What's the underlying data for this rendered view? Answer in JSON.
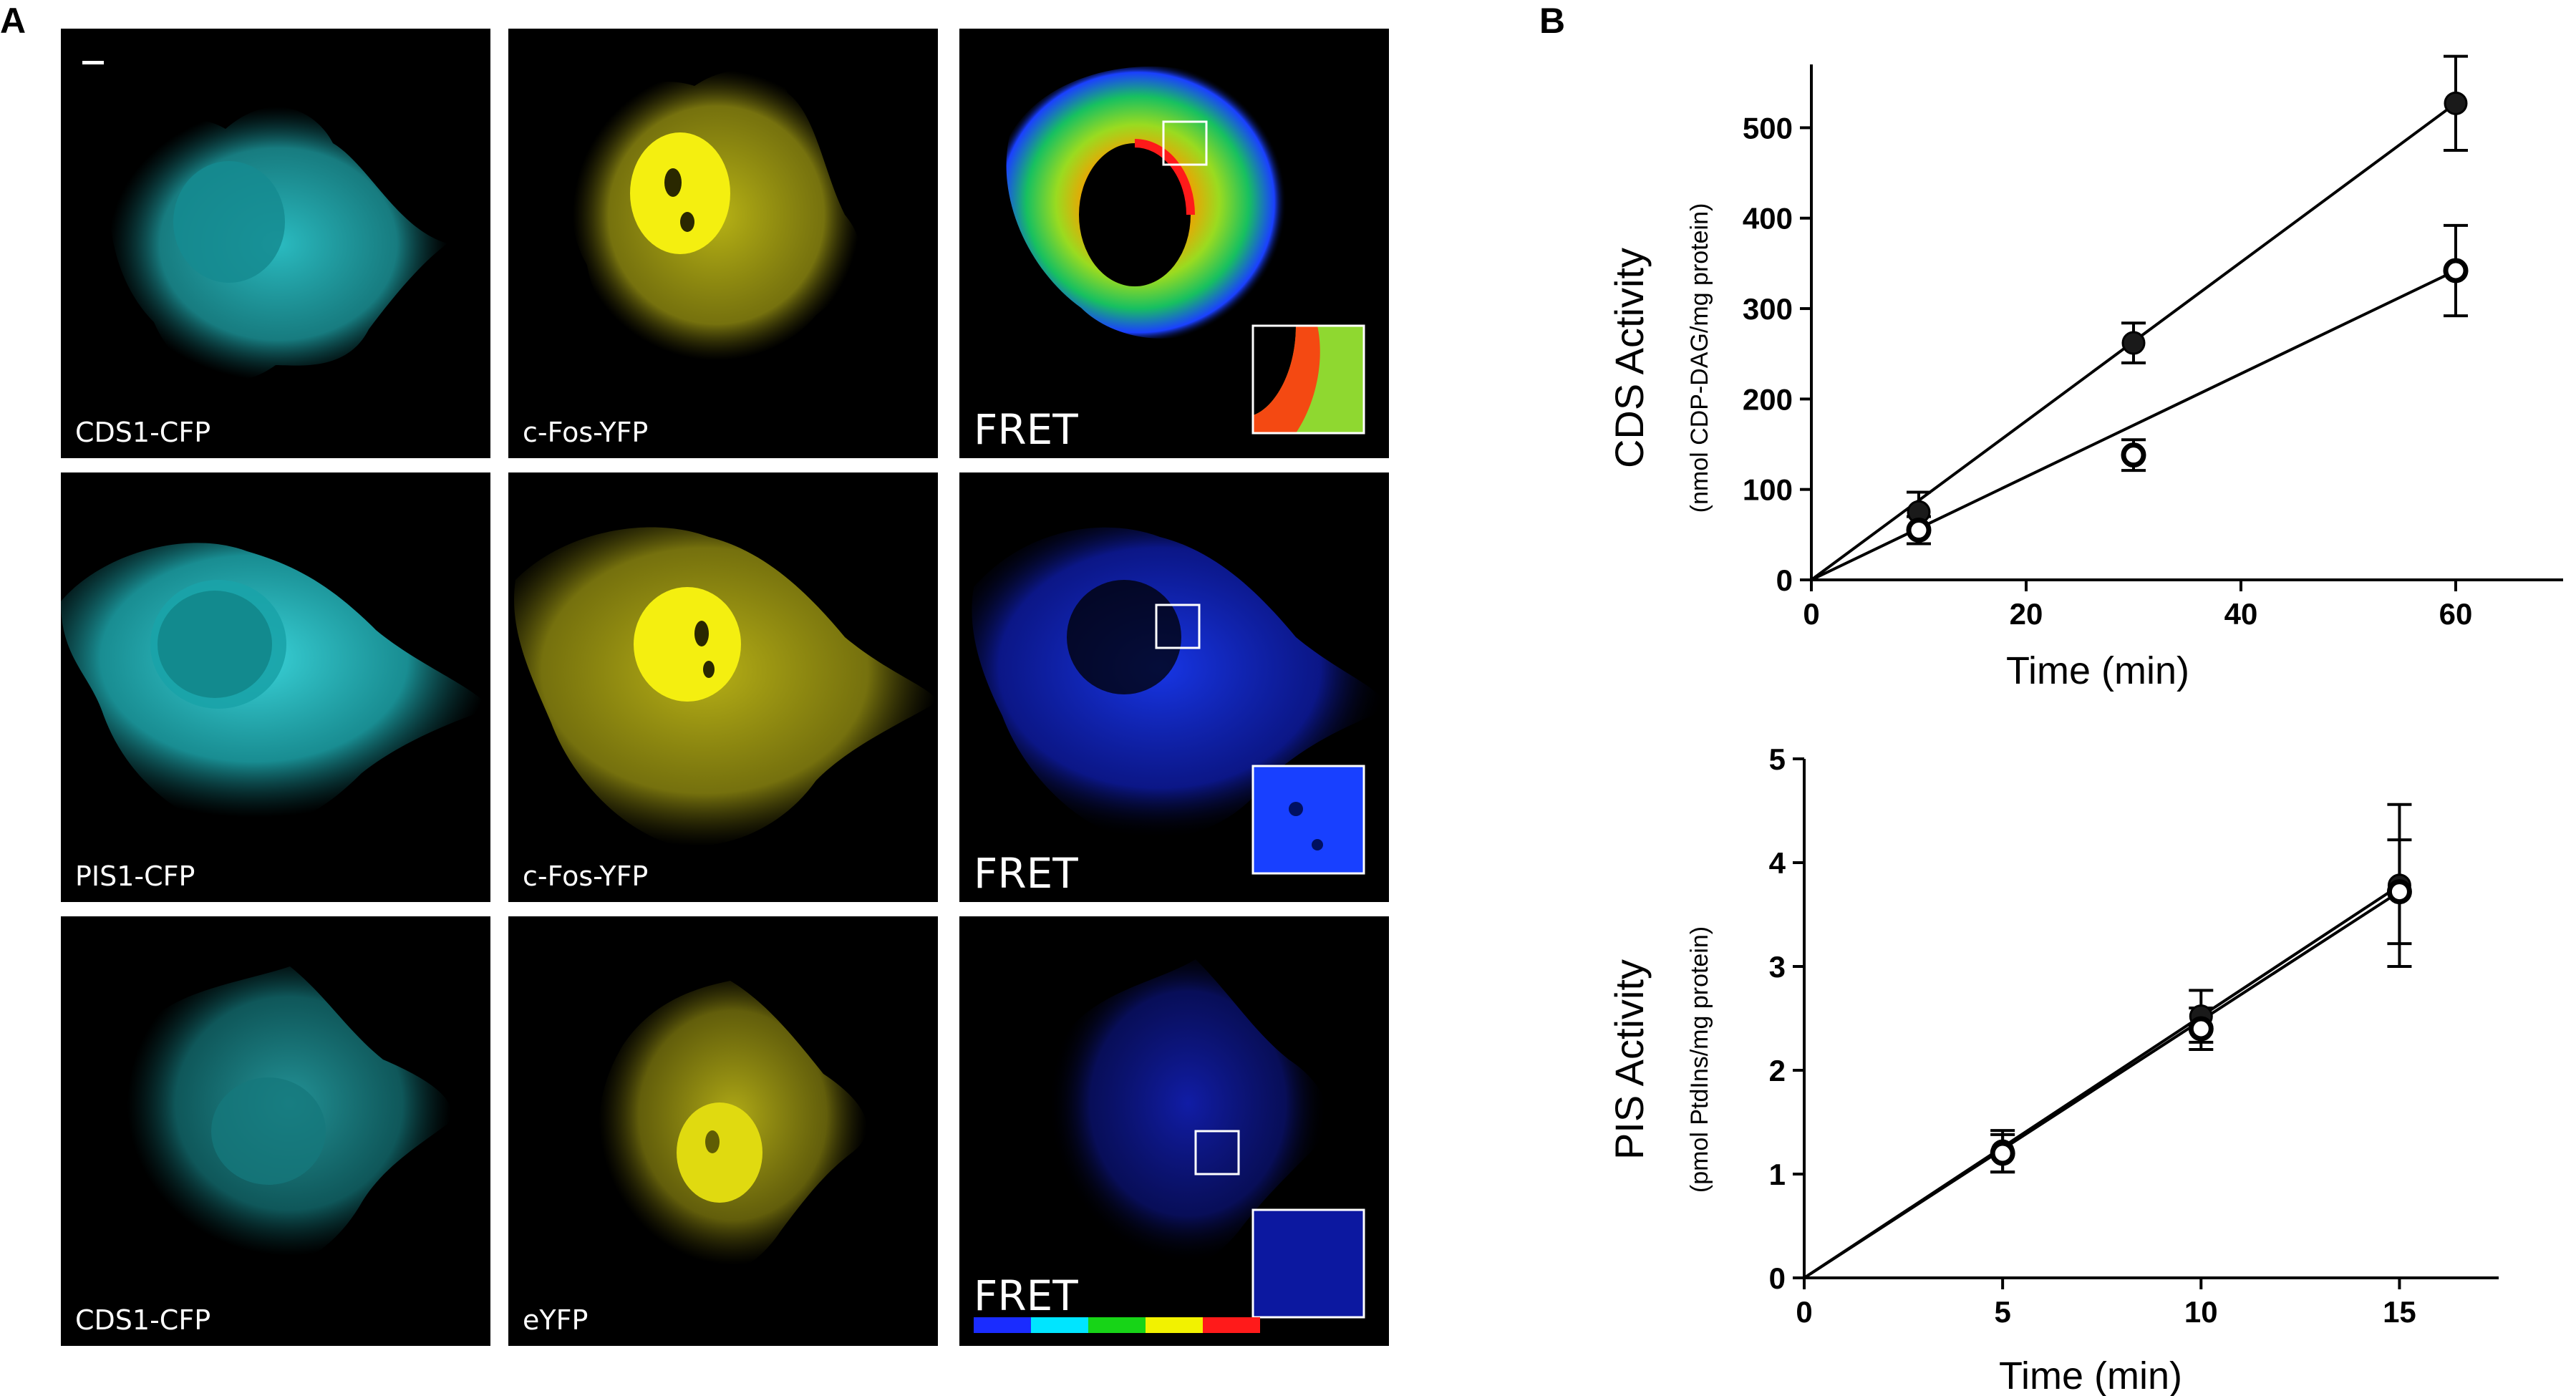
{
  "panels": {
    "a_letter": "A",
    "b_letter": "B"
  },
  "micrographs": [
    {
      "row": 1,
      "cfp_label": "CDS1-CFP",
      "yfp_label": "c-Fos-YFP",
      "fret_label": "FRET",
      "fret_level": "high"
    },
    {
      "row": 2,
      "cfp_label": "PIS1-CFP",
      "yfp_label": "c-Fos-YFP",
      "fret_label": "FRET",
      "fret_level": "low"
    },
    {
      "row": 3,
      "cfp_label": "CDS1-CFP",
      "yfp_label": "eYFP",
      "fret_label": "FRET",
      "fret_level": "background"
    }
  ],
  "colors": {
    "cfp": "#2fd0d6",
    "yfp": "#e6e01a",
    "fret_scale": [
      "#1a2cff",
      "#00e5ff",
      "#17d417",
      "#f2f200",
      "#ff1a1a"
    ]
  },
  "chart_data": [
    {
      "type": "scatter",
      "title": "",
      "ylabel": "CDS Activity",
      "ylabel_sub": "(nmol CDP-DAG/mg protein)",
      "xlabel": "Time (min)",
      "xlim": [
        0,
        70
      ],
      "ylim": [
        0,
        570
      ],
      "xticks": [
        0,
        20,
        40,
        60
      ],
      "yticks": [
        0,
        100,
        200,
        300,
        400,
        500
      ],
      "grid": false,
      "series": [
        {
          "marker": "filled",
          "x": [
            10,
            30,
            60
          ],
          "y": [
            75,
            262,
            527
          ],
          "err": [
            22,
            22,
            52
          ],
          "fit": [
            [
              0,
              0
            ],
            [
              60,
              527
            ]
          ]
        },
        {
          "marker": "open",
          "x": [
            10,
            30,
            60
          ],
          "y": [
            55,
            138,
            342
          ],
          "err": [
            15,
            17,
            50
          ],
          "fit": [
            [
              0,
              0
            ],
            [
              60,
              342
            ]
          ]
        }
      ]
    },
    {
      "type": "scatter",
      "title": "",
      "ylabel": "PIS Activity",
      "ylabel_sub": "(pmol PtdIns/mg protein)",
      "xlabel": "Time (min)",
      "xlim": [
        0,
        17.5
      ],
      "ylim": [
        0,
        5
      ],
      "xticks": [
        0,
        5,
        10,
        15
      ],
      "yticks": [
        0,
        1,
        2,
        3,
        4,
        5
      ],
      "grid": false,
      "series": [
        {
          "marker": "filled",
          "x": [
            5,
            10,
            15
          ],
          "y": [
            1.22,
            2.52,
            3.78
          ],
          "err": [
            0.2,
            0.25,
            0.78
          ],
          "fit": [
            [
              0,
              0
            ],
            [
              15,
              3.78
            ]
          ]
        },
        {
          "marker": "open",
          "x": [
            5,
            10,
            15
          ],
          "y": [
            1.2,
            2.4,
            3.72
          ],
          "err": [
            0.18,
            0.2,
            0.5
          ],
          "fit": [
            [
              0,
              0
            ],
            [
              15,
              3.72
            ]
          ]
        }
      ]
    }
  ]
}
